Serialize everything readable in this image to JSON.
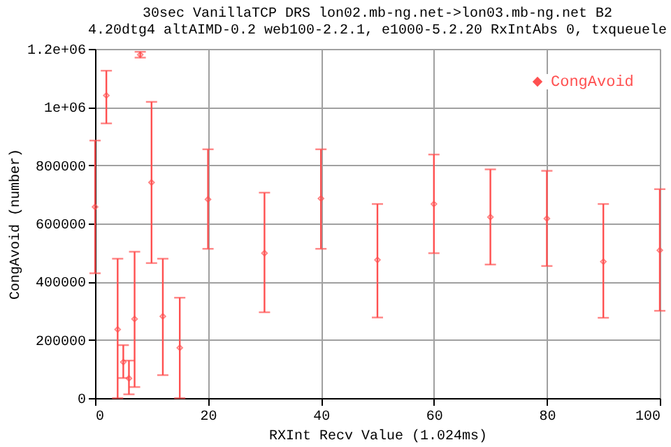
{
  "chart_data": {
    "type": "scatter",
    "title": [
      "30sec VanillaTCP DRS lon02.mb-ng.net->lon03.mb-ng.net B2",
      "4.20dtg4 altAIMD-0.2 web100-2.2.1, e1000-5.2.20 RxIntAbs 0, txqueuele"
    ],
    "xlabel": "RXInt Recv Value (1.024ms)",
    "ylabel": "CongAvoid (number)",
    "x": [
      0,
      2,
      4,
      5,
      6,
      7,
      8,
      10,
      12,
      15,
      20,
      30,
      40,
      50,
      60,
      70,
      80,
      90,
      100
    ],
    "series": [
      {
        "name": "CongAvoid",
        "color": "#ff5050",
        "values": [
          657000,
          1040000,
          236000,
          124000,
          68000,
          272000,
          1180000,
          741000,
          281000,
          173000,
          683000,
          498000,
          686000,
          475000,
          667000,
          622000,
          617000,
          469000,
          508000
        ],
        "errors": [
          [
            429000,
            885000
          ],
          [
            944000,
            1125000
          ],
          [
            0,
            479000
          ],
          [
            69000,
            182000
          ],
          [
            13000,
            129000
          ],
          [
            38000,
            503000
          ],
          [
            1170000,
            1190000
          ],
          [
            464000,
            1018000
          ],
          [
            79000,
            479000
          ],
          [
            0,
            345000
          ],
          [
            513000,
            855000
          ],
          [
            295000,
            706000
          ],
          [
            513000,
            855000
          ],
          [
            277000,
            667000
          ],
          [
            498000,
            837000
          ],
          [
            459000,
            786000
          ],
          [
            454000,
            781000
          ],
          [
            276000,
            667000
          ],
          [
            300000,
            718000
          ]
        ]
      }
    ],
    "xlim": [
      0,
      100
    ],
    "xticks": [
      0,
      20,
      40,
      60,
      80,
      100
    ],
    "ylim": [
      0,
      1200000
    ],
    "yticks": [
      0,
      200000,
      400000,
      600000,
      800000,
      {
        "value": 1000000,
        "label": "1e+06"
      },
      {
        "value": 1200000,
        "label": "1.2e+06"
      }
    ],
    "grid": true,
    "legend": "top right",
    "marker": "diamond"
  }
}
